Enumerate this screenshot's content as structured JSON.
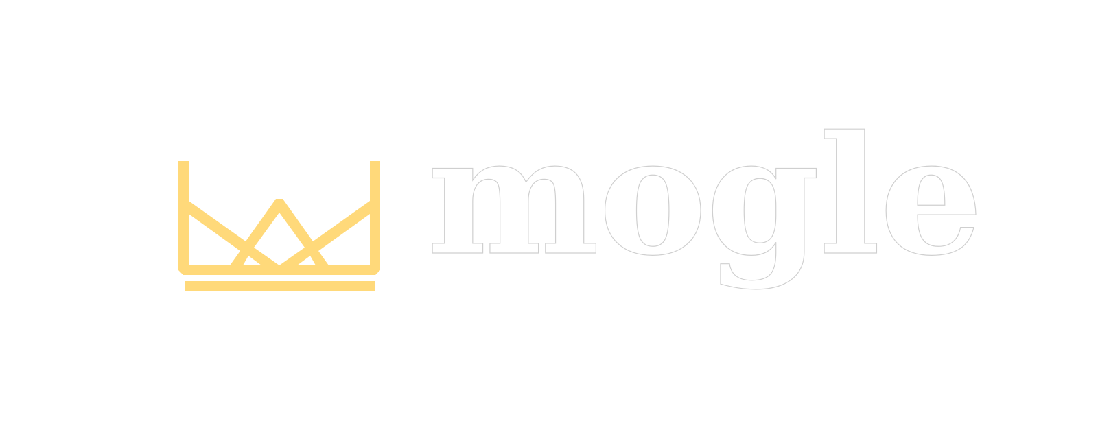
{
  "logo": {
    "wordmark": "mogle",
    "crown_color": "#FFD97A",
    "wordmark_fill": "#FFFFFF",
    "wordmark_outline": "#CFCFCF",
    "icon": "crown-icon"
  },
  "background": "#FFFFFF"
}
